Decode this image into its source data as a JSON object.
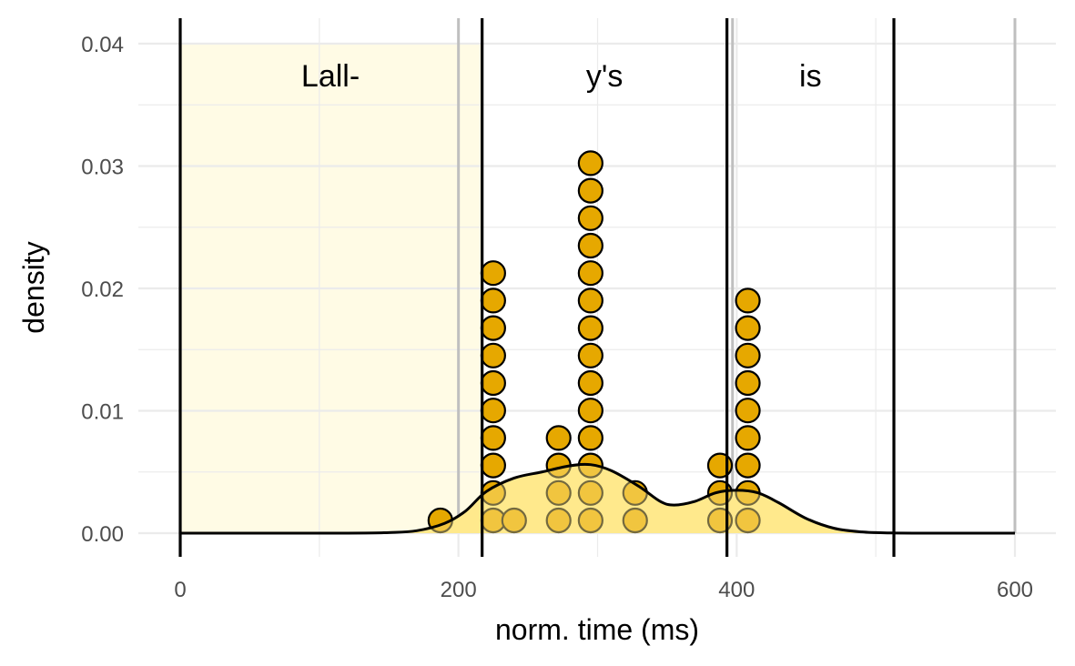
{
  "chart_data": {
    "type": "dotplot-density",
    "xlabel": "norm. time (ms)",
    "ylabel": "density",
    "xlim": [
      0,
      620
    ],
    "ylim": [
      0,
      0.04
    ],
    "x_ticks": [
      0,
      200,
      400,
      600
    ],
    "x_tick_labels": [
      "0",
      "200",
      "400",
      "600"
    ],
    "y_ticks": [
      0,
      0.01,
      0.02,
      0.03,
      0.04
    ],
    "y_tick_labels": [
      "0.00",
      "0.01",
      "0.02",
      "0.03",
      "0.04"
    ],
    "grid": true,
    "highlight_region": {
      "from": 0,
      "to": 217,
      "color": "#fffbe5"
    },
    "word_boundaries": [
      0,
      217,
      393,
      513
    ],
    "reference_lines": [
      200,
      397,
      600
    ],
    "words": [
      {
        "label": "Lall-",
        "x": 108
      },
      {
        "label": "y's",
        "x": 305
      },
      {
        "label": "is",
        "x": 453
      }
    ],
    "dot_stacks": [
      {
        "x": 187,
        "count": 1
      },
      {
        "x": 225,
        "count": 10
      },
      {
        "x": 240,
        "count": 1
      },
      {
        "x": 272,
        "count": 4
      },
      {
        "x": 295,
        "count": 14
      },
      {
        "x": 327,
        "count": 2
      },
      {
        "x": 388,
        "count": 3
      },
      {
        "x": 408,
        "count": 9
      }
    ],
    "density_curve": {
      "x": [
        0,
        120,
        150,
        170,
        190,
        205,
        220,
        240,
        260,
        280,
        295,
        310,
        330,
        345,
        355,
        370,
        385,
        400,
        415,
        430,
        450,
        470,
        490,
        510,
        530,
        600
      ],
      "y": [
        0,
        0,
        5e-05,
        0.0002,
        0.0008,
        0.0018,
        0.0034,
        0.0045,
        0.005,
        0.0055,
        0.0056,
        0.0051,
        0.0038,
        0.0026,
        0.0023,
        0.0026,
        0.0033,
        0.0035,
        0.0033,
        0.0025,
        0.0012,
        0.0004,
        0.0001,
        2e-05,
        0,
        0
      ]
    },
    "colors": {
      "dot_fill": "#e6a800",
      "dot_fill_light": "#f2c21a",
      "dot_stroke": "#000000",
      "density_fill": "#ffe98c",
      "grid": "#ebebeb",
      "reference_line": "#bfbfbf",
      "boundary_line": "#000000"
    }
  }
}
